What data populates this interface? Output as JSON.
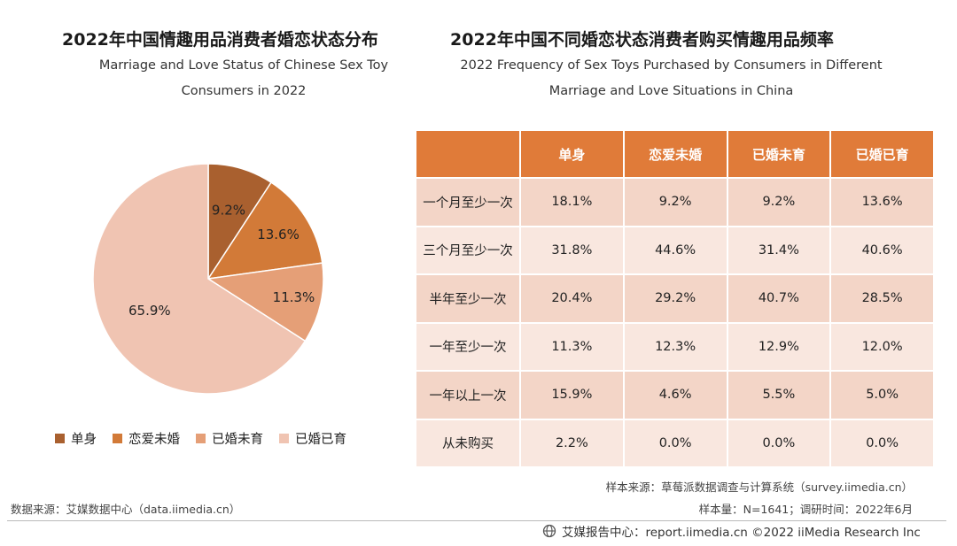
{
  "left_title": {
    "cn": "2022年中国情趣用品消费者婚恋状态分布",
    "en_line1": "Marriage and Love Status of Chinese Sex Toy",
    "en_line2": "Consumers in 2022"
  },
  "right_title": {
    "cn": "2022年中国不同婚恋状态消费者购买情趣用品频率",
    "en_line1": "2022 Frequency of Sex Toys Purchased by Consumers in Different",
    "en_line2": "Marriage and Love Situations in China"
  },
  "chart_data": [
    {
      "type": "pie",
      "categories": [
        "单身",
        "恋爱未婚",
        "已婚未育",
        "已婚已育"
      ],
      "values": [
        9.2,
        13.6,
        11.3,
        65.9
      ],
      "data_labels": [
        "9.2%",
        "13.6%",
        "11.3%",
        "65.9%"
      ],
      "colors": [
        "#a9602f",
        "#d27a38",
        "#e59f77",
        "#f0c4b2"
      ],
      "legend_position": "bottom"
    },
    {
      "type": "table",
      "columns": [
        "",
        "单身",
        "恋爱未婚",
        "已婚未育",
        "已婚已育"
      ],
      "rows": [
        [
          "一个月至少一次",
          "18.1%",
          "9.2%",
          "9.2%",
          "13.6%"
        ],
        [
          "三个月至少一次",
          "31.8%",
          "44.6%",
          "31.4%",
          "40.6%"
        ],
        [
          "半年至少一次",
          "20.4%",
          "29.2%",
          "40.7%",
          "28.5%"
        ],
        [
          "一年至少一次",
          "11.3%",
          "12.3%",
          "12.9%",
          "12.0%"
        ],
        [
          "一年以上一次",
          "15.9%",
          "4.6%",
          "5.5%",
          "5.0%"
        ],
        [
          "从未购买",
          "2.2%",
          "0.0%",
          "0.0%",
          "0.0%"
        ]
      ],
      "header_color": "#e07b39"
    }
  ],
  "sources": {
    "left": "数据来源：艾媒数据中心（data.iimedia.cn）",
    "sample_source": "样本来源：草莓派数据调查与计算系统（survey.iimedia.cn）",
    "sample_size": "样本量：N=1641；调研时间：2022年6月"
  },
  "footer": {
    "icon": "globe-icon",
    "text": "艾媒报告中心：report.iimedia.cn  ©2022  iiMedia Research Inc"
  }
}
